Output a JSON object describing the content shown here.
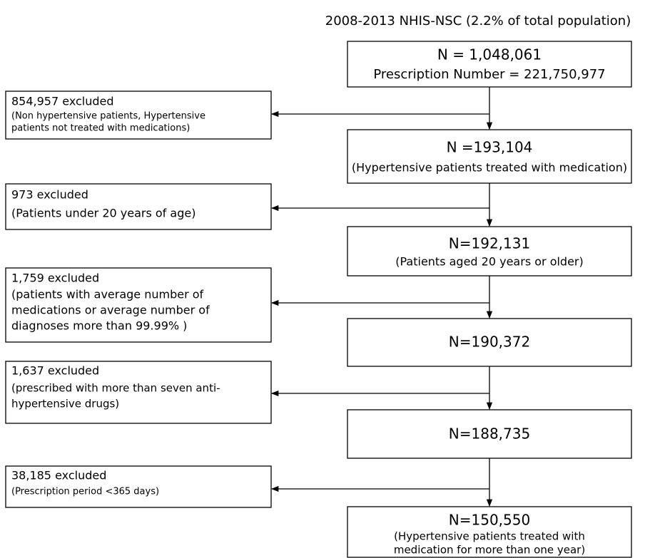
{
  "title": "2008-2013 NHIS-NSC (2.2% of total population)",
  "nodes": [
    {
      "lines": [
        "N = 1,048,061",
        "Prescription Number = 221,750,977"
      ]
    },
    {
      "lines": [
        "N =193,104",
        "(Hypertensive patients treated with medication)"
      ]
    },
    {
      "lines": [
        "N=192,131",
        "(Patients aged 20 years or older)"
      ]
    },
    {
      "lines": [
        "N=190,372"
      ]
    },
    {
      "lines": [
        "N=188,735"
      ]
    },
    {
      "lines": [
        "N=150,550",
        "(Hypertensive patients treated with",
        "medication for more than one year)"
      ]
    }
  ],
  "exclusions": [
    {
      "lines": [
        "854,957 excluded",
        "(Non hypertensive patients, Hypertensive",
        "patients not treated with medications)"
      ]
    },
    {
      "lines": [
        "973 excluded",
        "(Patients under 20 years of age)"
      ]
    },
    {
      "lines": [
        "1,759 excluded",
        "(patients with average number of",
        "medications or average number of",
        "diagnoses  more than  99.99% )"
      ]
    },
    {
      "lines": [
        "1,637 excluded",
        "(prescribed with more than seven anti-",
        "hypertensive drugs)"
      ]
    },
    {
      "lines": [
        "38,185 excluded",
        "(Prescription period <365 days)"
      ]
    }
  ]
}
